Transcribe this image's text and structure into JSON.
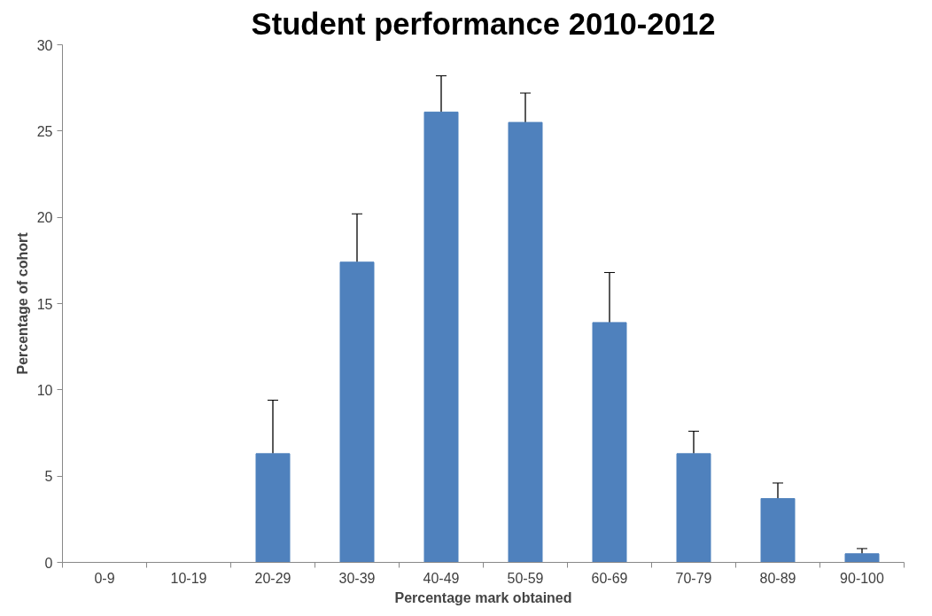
{
  "chart_data": {
    "type": "bar",
    "title": "Student performance 2010-2012",
    "xlabel": "Percentage mark obtained",
    "ylabel": "Percentage of cohort",
    "categories": [
      "0-9",
      "10-19",
      "20-29",
      "30-39",
      "40-49",
      "50-59",
      "60-69",
      "70-79",
      "80-89",
      "90-100"
    ],
    "series": [
      {
        "color": "#4f81bd",
        "values": [
          0,
          0,
          6.3,
          17.4,
          26.1,
          25.5,
          13.9,
          6.3,
          3.7,
          0.5
        ],
        "errors": [
          null,
          null,
          [
            6.3,
            9.4
          ],
          [
            17.4,
            20.2
          ],
          [
            26.1,
            28.2
          ],
          [
            25.5,
            27.2
          ],
          [
            13.9,
            16.8
          ],
          [
            6.3,
            7.6
          ],
          [
            3.7,
            4.6
          ],
          [
            0.5,
            0.8
          ]
        ]
      }
    ],
    "ylim": [
      0,
      30
    ],
    "yticks": [
      0,
      5,
      10,
      15,
      20,
      25,
      30
    ],
    "grid": false
  }
}
